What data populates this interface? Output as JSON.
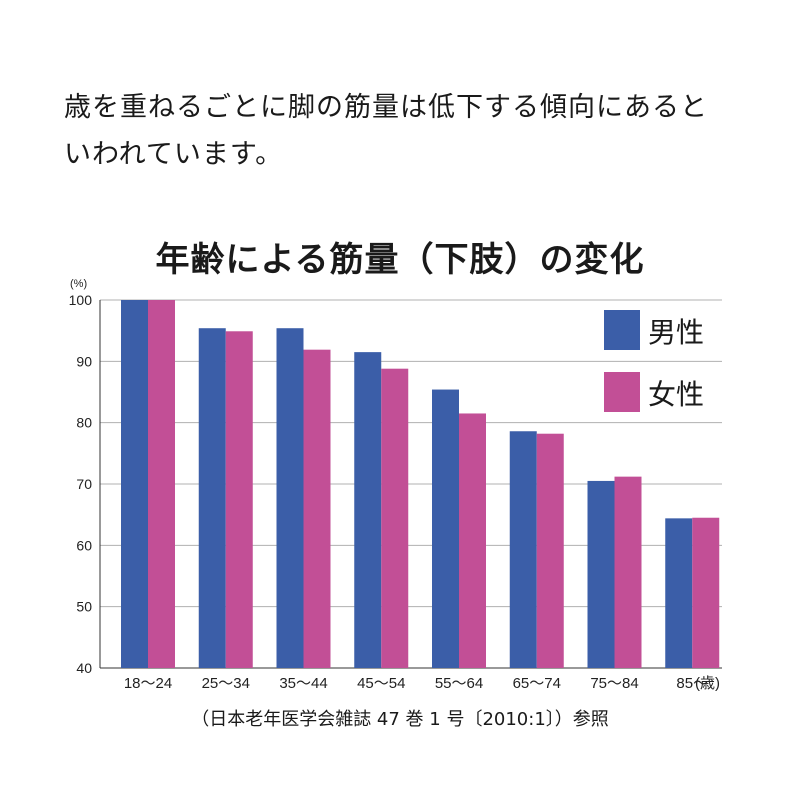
{
  "intro": {
    "line1": "歳を重ねるごとに脚の筋量は低下する傾向にあると",
    "line2": "いわれています。"
  },
  "colors": {
    "male": "#3b5ea8",
    "female": "#c24f96",
    "grid": "#b0b0b0",
    "axis": "#333333"
  },
  "chart_data": {
    "type": "bar",
    "title": "年齢による筋量（下肢）の変化",
    "ylabel": "(%)",
    "xlabel": "",
    "x_unit": "(歳)",
    "ylim": [
      40,
      100
    ],
    "yticks": [
      40,
      50,
      60,
      70,
      80,
      90,
      100
    ],
    "grid": true,
    "legend": "top-right",
    "categories": [
      "18～24",
      "25～34",
      "35～44",
      "45～54",
      "55～64",
      "65～74",
      "75～84",
      "85～"
    ],
    "series": [
      {
        "name": "男性",
        "values": [
          100,
          95.4,
          95.4,
          91.5,
          85.4,
          78.6,
          70.5,
          64.4
        ]
      },
      {
        "name": "女性",
        "values": [
          100,
          94.9,
          91.9,
          88.8,
          81.5,
          78.2,
          71.2,
          64.5
        ]
      }
    ],
    "source": "（日本老年医学会雑誌 47 巻 1 号〔2010:1〕）参照"
  }
}
